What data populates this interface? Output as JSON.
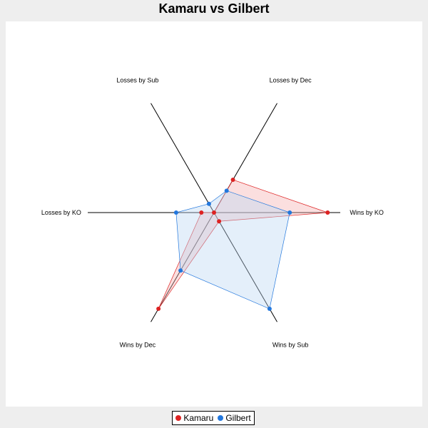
{
  "chart_data": {
    "type": "radar",
    "title": "Kamaru vs Gilbert",
    "axes": [
      "Wins by KO",
      "Wins by Sub",
      "Wins by Dec",
      "Losses by KO",
      "Losses by Sub",
      "Losses by Dec"
    ],
    "max": 1.0,
    "series": [
      {
        "name": "Kamaru",
        "color": "#dd2222",
        "fill": "#f4b0b0",
        "values": [
          0.9,
          0.08,
          0.88,
          0.1,
          0.0,
          0.3
        ]
      },
      {
        "name": "Gilbert",
        "color": "#2277dd",
        "fill": "#bcd6f2",
        "values": [
          0.6,
          0.88,
          0.53,
          0.3,
          0.08,
          0.2
        ]
      }
    ],
    "legend_position": "bottom"
  }
}
